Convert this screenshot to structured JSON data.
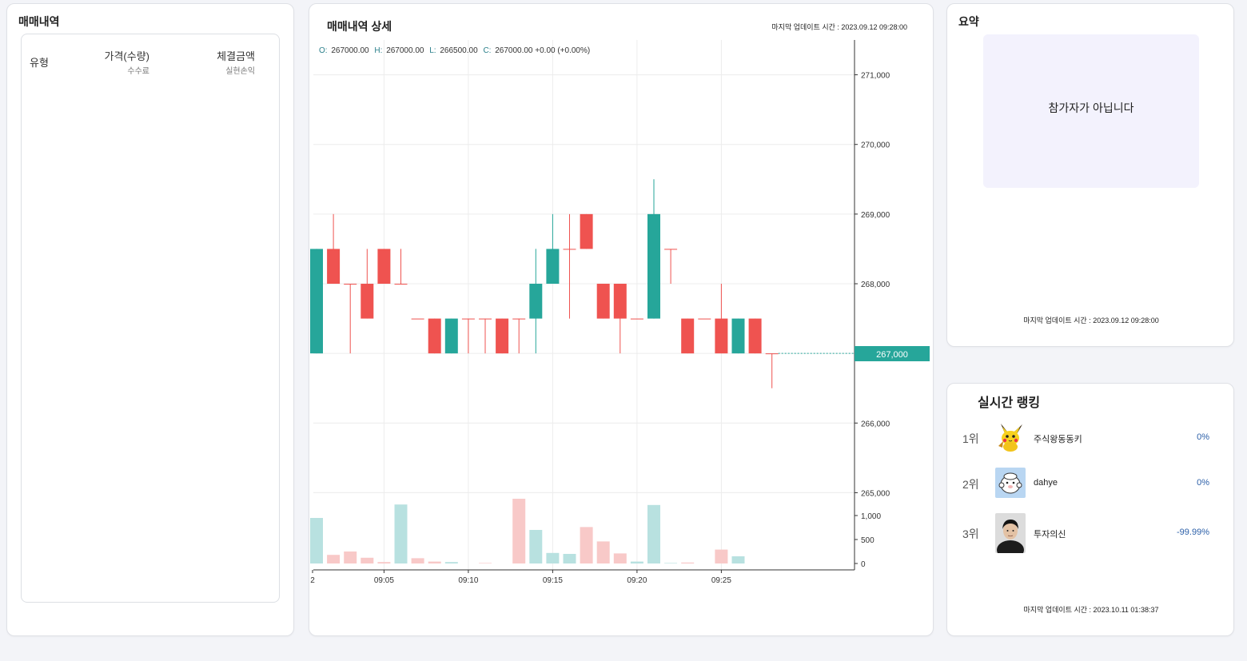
{
  "trade_history": {
    "title": "매매내역",
    "columns": {
      "type": "유형",
      "price": "가격(수량)",
      "price_sub": "수수료",
      "amount": "체결금액",
      "amount_sub": "실현손익"
    }
  },
  "chart_panel": {
    "title": "매매내역 상세",
    "last_updated": "마지막 업데이트 시간 : 2023.09.12 09:28:00",
    "ohlc": {
      "o_label": "O:",
      "o": "267000.00",
      "h_label": "H:",
      "h": "267000.00",
      "l_label": "L:",
      "l": "266500.00",
      "c_label": "C:",
      "c": "267000.00 +0.00 (+0.00%)"
    },
    "current_price": "267,000"
  },
  "summary": {
    "title": "요약",
    "message": "참가자가 아닙니다",
    "last_updated": "마지막 업데이트 시간 : 2023.09.12 09:28:00"
  },
  "ranking": {
    "title": "실시간 랭킹",
    "items": [
      {
        "rank": "1위",
        "name": "주식왕동동키",
        "pct": "0%",
        "avatar": "pikachu-avatar"
      },
      {
        "rank": "2위",
        "name": "dahye",
        "pct": "0%",
        "avatar": "cartoon-avatar"
      },
      {
        "rank": "3위",
        "name": "투자의신",
        "pct": "-99.99%",
        "avatar": "photo-avatar"
      }
    ],
    "last_updated": "마지막 업데이트 시간 : 2023.10.11 01:38:37"
  },
  "colors": {
    "up": "#26a69a",
    "down": "#ef5350",
    "vol_up": "#b8e1e0",
    "vol_down": "#f8c9c8",
    "price_tag": "#26a69a"
  },
  "chart_data": {
    "type": "candlestick",
    "y_tick_labels": [
      "271,000",
      "270,000",
      "269,000",
      "268,000",
      "266,000",
      "265,000"
    ],
    "y_ticks": [
      271000,
      270000,
      269000,
      268000,
      266000,
      265000
    ],
    "x_tick_labels": [
      "2",
      "09:05",
      "09:10",
      "09:15",
      "09:20",
      "09:25"
    ],
    "volume_tick_labels": [
      "1,000",
      "500",
      "0"
    ],
    "volume_ticks": [
      1000,
      500,
      0
    ],
    "candles": [
      {
        "o": 267000,
        "h": 268500,
        "l": 267000,
        "c": 268500,
        "v": 950
      },
      {
        "o": 268500,
        "h": 269000,
        "l": 268000,
        "c": 268000,
        "v": 180
      },
      {
        "o": 268000,
        "h": 268000,
        "l": 267000,
        "c": 268000,
        "v": 250
      },
      {
        "o": 268000,
        "h": 268500,
        "l": 267500,
        "c": 267500,
        "v": 120
      },
      {
        "o": 268500,
        "h": 268500,
        "l": 268000,
        "c": 268000,
        "v": 30
      },
      {
        "o": 268000,
        "h": 268500,
        "l": 268000,
        "c": 268000,
        "v": 1230
      },
      {
        "o": 267500,
        "h": 267500,
        "l": 267500,
        "c": 267500,
        "v": 110
      },
      {
        "o": 267500,
        "h": 267500,
        "l": 267000,
        "c": 267000,
        "v": 40
      },
      {
        "o": 267000,
        "h": 267500,
        "l": 267000,
        "c": 267500,
        "v": 30
      },
      {
        "o": 267500,
        "h": 267500,
        "l": 267000,
        "c": 267500,
        "v": 0
      },
      {
        "o": 267500,
        "h": 267500,
        "l": 267000,
        "c": 267500,
        "v": 10
      },
      {
        "o": 267500,
        "h": 267500,
        "l": 267000,
        "c": 267000,
        "v": 0
      },
      {
        "o": 267500,
        "h": 267500,
        "l": 267000,
        "c": 267500,
        "v": 1350
      },
      {
        "o": 267500,
        "h": 268500,
        "l": 267000,
        "c": 268000,
        "v": 700
      },
      {
        "o": 268000,
        "h": 269000,
        "l": 268000,
        "c": 268500,
        "v": 220
      },
      {
        "o": 268500,
        "h": 269000,
        "l": 267500,
        "c": 268500,
        "v": 200
      },
      {
        "o": 269000,
        "h": 269000,
        "l": 268500,
        "c": 268500,
        "v": 760
      },
      {
        "o": 268000,
        "h": 268000,
        "l": 267500,
        "c": 267500,
        "v": 460
      },
      {
        "o": 268000,
        "h": 268000,
        "l": 267000,
        "c": 267500,
        "v": 210
      },
      {
        "o": 267500,
        "h": 267500,
        "l": 267500,
        "c": 267500,
        "v": 40
      },
      {
        "o": 267500,
        "h": 269500,
        "l": 267500,
        "c": 269000,
        "v": 1220
      },
      {
        "o": 268500,
        "h": 268500,
        "l": 268000,
        "c": 268500,
        "v": 10
      },
      {
        "o": 267500,
        "h": 267500,
        "l": 267000,
        "c": 267000,
        "v": 20
      },
      {
        "o": 267500,
        "h": 267500,
        "l": 267500,
        "c": 267500,
        "v": 0
      },
      {
        "o": 267500,
        "h": 268000,
        "l": 267000,
        "c": 267000,
        "v": 290
      },
      {
        "o": 267000,
        "h": 267500,
        "l": 267000,
        "c": 267500,
        "v": 150
      },
      {
        "o": 267500,
        "h": 267500,
        "l": 267000,
        "c": 267000,
        "v": 0
      },
      {
        "o": 267000,
        "h": 267000,
        "l": 266500,
        "c": 267000,
        "v": 0
      }
    ]
  }
}
